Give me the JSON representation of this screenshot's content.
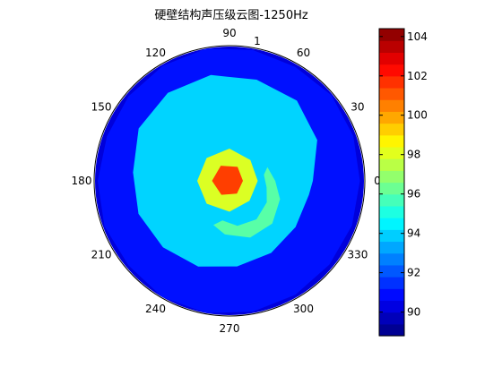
{
  "chart_data": {
    "type": "polar-contour",
    "title": "硬壁结构声压级云图-1250Hz",
    "angle_ticks": [
      "0",
      "30",
      "60",
      "90",
      "120",
      "150",
      "180",
      "210",
      "240",
      "270",
      "300",
      "330"
    ],
    "angle_tick_values_deg": [
      0,
      30,
      60,
      90,
      120,
      150,
      180,
      210,
      240,
      270,
      300,
      330
    ],
    "radial_marker_label": "1",
    "colorbar": {
      "ticks": [
        "90",
        "92",
        "94",
        "96",
        "98",
        "100",
        "102",
        "104"
      ],
      "tick_values": [
        90,
        92,
        94,
        96,
        98,
        100,
        102,
        104
      ],
      "range": [
        88.8,
        104.4
      ],
      "levels": [
        89.4,
        90.0,
        90.6,
        91.2,
        91.8,
        92.4,
        93.0,
        93.6,
        94.2,
        94.8,
        95.4,
        96.0,
        96.6,
        97.2,
        97.8,
        98.4,
        99.0,
        99.6,
        100.2,
        100.8,
        101.4,
        102.0,
        102.6,
        103.2,
        103.8
      ],
      "colormap": "jet"
    },
    "contour_regions": [
      {
        "level": 91.0,
        "description": "outer ring band",
        "points_deg_r": [
          [
            0,
            0.97
          ],
          [
            20,
            0.98
          ],
          [
            40,
            0.99
          ],
          [
            60,
            0.98
          ],
          [
            80,
            0.99
          ],
          [
            100,
            1.0
          ],
          [
            120,
            0.99
          ],
          [
            140,
            0.98
          ],
          [
            160,
            0.97
          ],
          [
            180,
            0.98
          ],
          [
            200,
            0.99
          ],
          [
            220,
            0.98
          ],
          [
            240,
            1.0
          ],
          [
            260,
            1.0
          ],
          [
            280,
            0.99
          ],
          [
            300,
            0.98
          ],
          [
            320,
            0.97
          ],
          [
            340,
            0.97
          ]
        ]
      },
      {
        "level": 94.0,
        "description": "cyan interior",
        "points_deg_r": [
          [
            0,
            0.62
          ],
          [
            25,
            0.72
          ],
          [
            50,
            0.78
          ],
          [
            75,
            0.78
          ],
          [
            100,
            0.8
          ],
          [
            125,
            0.8
          ],
          [
            150,
            0.78
          ],
          [
            175,
            0.72
          ],
          [
            200,
            0.72
          ],
          [
            225,
            0.7
          ],
          [
            250,
            0.68
          ],
          [
            275,
            0.64
          ],
          [
            300,
            0.62
          ],
          [
            325,
            0.6
          ],
          [
            350,
            0.6
          ]
        ]
      },
      {
        "level": 96.0,
        "description": "green spiral arm",
        "points_deg_r": [
          [
            20,
            0.3
          ],
          [
            0,
            0.34
          ],
          [
            -20,
            0.4
          ],
          [
            -45,
            0.45
          ],
          [
            -70,
            0.45
          ],
          [
            -95,
            0.4
          ],
          [
            -110,
            0.35
          ],
          [
            -100,
            0.3
          ],
          [
            -80,
            0.34
          ],
          [
            -55,
            0.35
          ],
          [
            -30,
            0.32
          ],
          [
            -10,
            0.28
          ],
          [
            10,
            0.26
          ]
        ]
      },
      {
        "level": 98.0,
        "description": "yellow ring around source",
        "points_deg_r": [
          [
            0,
            0.21
          ],
          [
            45,
            0.22
          ],
          [
            90,
            0.24
          ],
          [
            135,
            0.24
          ],
          [
            180,
            0.24
          ],
          [
            225,
            0.24
          ],
          [
            270,
            0.23
          ],
          [
            315,
            0.21
          ]
        ]
      },
      {
        "level": 101.5,
        "description": "hot spot near center",
        "points_deg_r": [
          [
            0,
            0.1
          ],
          [
            60,
            0.12
          ],
          [
            120,
            0.13
          ],
          [
            180,
            0.13
          ],
          [
            240,
            0.12
          ],
          [
            300,
            0.11
          ]
        ]
      }
    ]
  }
}
